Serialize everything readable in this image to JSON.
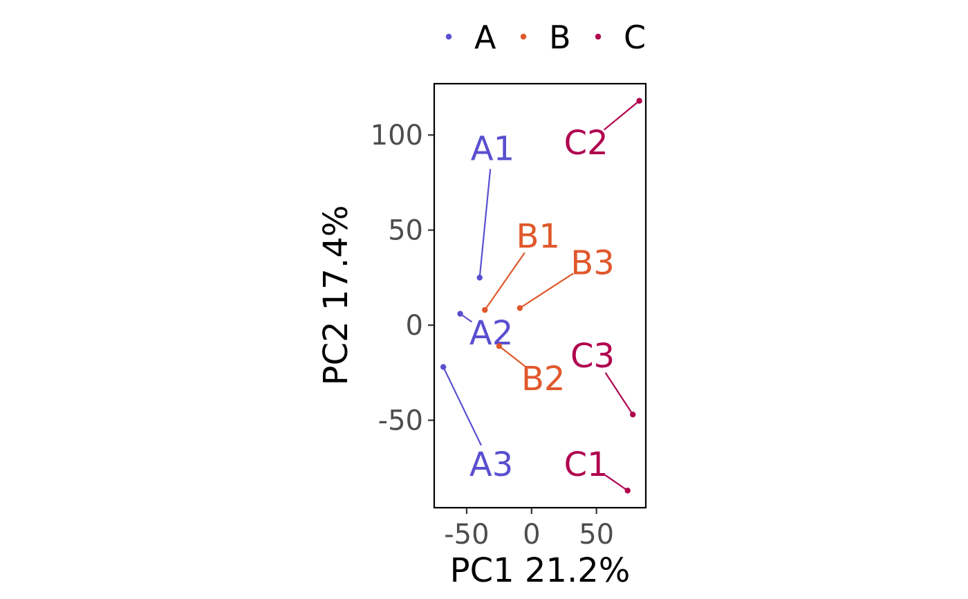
{
  "chart_data": {
    "type": "scatter",
    "title": "",
    "xlabel": "PC1 21.2%",
    "ylabel": "PC2 17.4%",
    "xlim": [
      -75,
      88
    ],
    "ylim": [
      -96,
      127
    ],
    "x_ticks": [
      -50,
      0,
      50
    ],
    "y_ticks": [
      -50,
      0,
      50,
      100
    ],
    "x_tick_labels": [
      "-50",
      "0",
      "50"
    ],
    "y_tick_labels": [
      "-50",
      "0",
      "50",
      "100"
    ],
    "grid": false,
    "legend": {
      "position": "top",
      "entries": [
        "A",
        "B",
        "C"
      ]
    },
    "series": [
      {
        "name": "A",
        "color": "#5a4fcf",
        "points": [
          {
            "label": "A1",
            "x": -40,
            "y": 25,
            "label_x": -30,
            "label_y": 93
          },
          {
            "label": "A2",
            "x": -55,
            "y": 6,
            "label_x": -31,
            "label_y": -4
          },
          {
            "label": "A3",
            "x": -68,
            "y": -22,
            "label_x": -31,
            "label_y": -73
          }
        ]
      },
      {
        "name": "B",
        "color": "#e0582b",
        "points": [
          {
            "label": "B1",
            "x": -36,
            "y": 8,
            "label_x": 5,
            "label_y": 47
          },
          {
            "label": "B2",
            "x": -25,
            "y": -11,
            "label_x": 9,
            "label_y": -28
          },
          {
            "label": "B3",
            "x": -9,
            "y": 9,
            "label_x": 47,
            "label_y": 33
          }
        ]
      },
      {
        "name": "C",
        "color": "#b0004e",
        "points": [
          {
            "label": "C1",
            "x": 74,
            "y": -87,
            "label_x": 42,
            "label_y": -73
          },
          {
            "label": "C2",
            "x": 83,
            "y": 118,
            "label_x": 42,
            "label_y": 96
          },
          {
            "label": "C3",
            "x": 78,
            "y": -47,
            "label_x": 47,
            "label_y": -16
          }
        ]
      }
    ]
  }
}
